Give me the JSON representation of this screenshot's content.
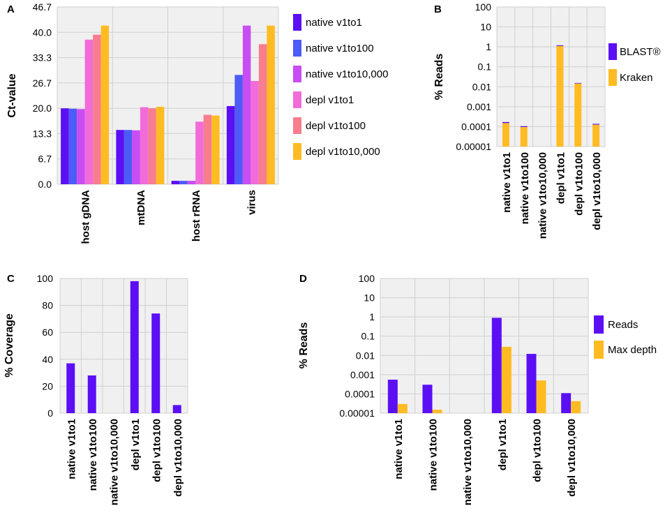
{
  "chart_data": [
    {
      "panel": "A",
      "type": "bar",
      "title": "",
      "xlabel": "",
      "ylabel": "Ct-value",
      "ylim": [
        0,
        46.7
      ],
      "yticks": [
        "0.0",
        "6.7",
        "13.3",
        "20.0",
        "26.7",
        "33.3",
        "40.0",
        "46.7"
      ],
      "grid": true,
      "legend_position": "right",
      "categories": [
        "host gDNA",
        "mtDNA",
        "host rRNA",
        "virus"
      ],
      "series": [
        {
          "name": "native v1to1",
          "color": "#5b0ff5",
          "values": [
            20.0,
            14.3,
            0.9,
            20.6
          ]
        },
        {
          "name": "native v1to100",
          "color": "#4d5bf7",
          "values": [
            19.9,
            14.3,
            0.9,
            28.8
          ]
        },
        {
          "name": "native v1to10,000",
          "color": "#c84df2",
          "values": [
            19.8,
            14.2,
            0.9,
            41.8
          ]
        },
        {
          "name": "depl v1to1",
          "color": "#f26cd9",
          "values": [
            38.1,
            20.3,
            16.5,
            27.2
          ]
        },
        {
          "name": "depl v1to100",
          "color": "#f77d8f",
          "values": [
            39.4,
            20.0,
            18.3,
            36.9
          ]
        },
        {
          "name": "depl v1to10,000",
          "color": "#ffbb22",
          "values": [
            41.8,
            20.4,
            18.1,
            41.8
          ]
        }
      ]
    },
    {
      "panel": "B",
      "type": "bar",
      "stacked": true,
      "scale": "log",
      "title": "",
      "xlabel": "",
      "ylabel": "% Reads",
      "ylim": [
        1e-05,
        100
      ],
      "yticks": [
        "0.00001",
        "0.0001",
        "0.001",
        "0.01",
        "0.1",
        "1",
        "10",
        "100"
      ],
      "grid": true,
      "legend_position": "right",
      "categories": [
        "native v1to1",
        "native v1to100",
        "native v1to10,000",
        "depl v1to1",
        "depl v1to100",
        "depl v1to10,000"
      ],
      "series": [
        {
          "name": "BLAST®",
          "color": "#5b0ff5",
          "values": [
            0.00017,
            0.000105,
            null,
            1.2,
            0.0155,
            0.000138
          ]
        },
        {
          "name": "Kraken",
          "color": "#ffbb22",
          "values": [
            0.00015,
            9.5e-05,
            null,
            1.1,
            0.0145,
            0.000125
          ]
        }
      ]
    },
    {
      "panel": "C",
      "type": "bar",
      "title": "",
      "xlabel": "",
      "ylabel": "% Coverage",
      "ylim": [
        0,
        100
      ],
      "yticks": [
        "0",
        "20",
        "40",
        "60",
        "80",
        "100"
      ],
      "grid": true,
      "categories": [
        "native v1to1",
        "native v1to100",
        "native v1to10,000",
        "depl v1to1",
        "depl v1to100",
        "depl v1to10,000"
      ],
      "series": [
        {
          "name": "Coverage",
          "color": "#5b0ff5",
          "values": [
            37,
            28,
            null,
            98,
            74,
            6
          ]
        }
      ]
    },
    {
      "panel": "D",
      "type": "bar",
      "scale": "log",
      "title": "",
      "xlabel": "",
      "ylabel": "% Reads",
      "ylim": [
        1e-05,
        100
      ],
      "yticks": [
        "0.00001",
        "0.0001",
        "0.001",
        "0.01",
        "0.1",
        "1",
        "10",
        "100"
      ],
      "grid": true,
      "legend_position": "right",
      "categories": [
        "native v1to1",
        "native v1to100",
        "native v1to10,000",
        "depl v1to1",
        "depl v1to100",
        "depl v1to10,000"
      ],
      "series": [
        {
          "name": "Reads",
          "color": "#5b0ff5",
          "values": [
            0.00055,
            0.0003,
            null,
            0.9,
            0.012,
            0.00011
          ]
        },
        {
          "name": "Max depth",
          "color": "#ffbb22",
          "values": [
            3e-05,
            1.5e-05,
            null,
            0.028,
            0.0005,
            4.2e-05
          ]
        }
      ]
    }
  ]
}
